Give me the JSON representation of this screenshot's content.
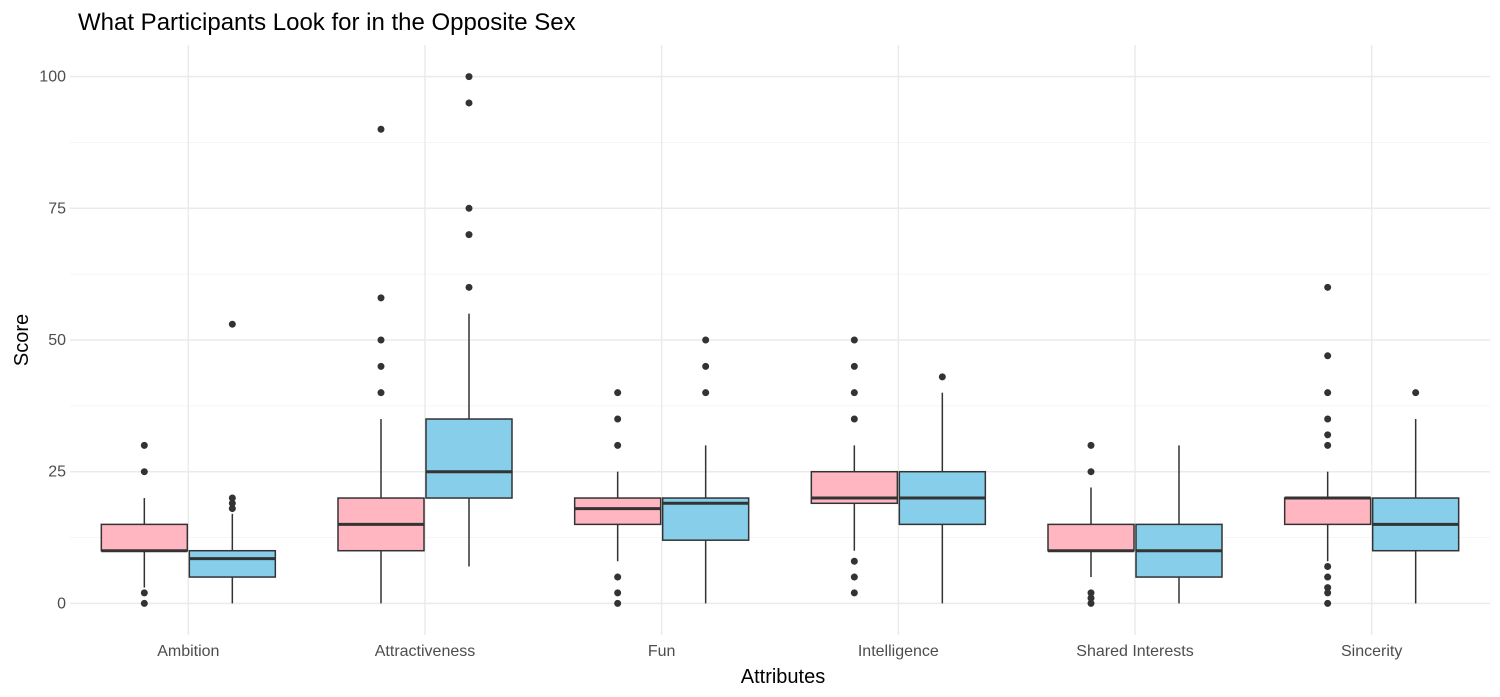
{
  "chart_data": {
    "type": "boxplot",
    "title": "What Participants Look for in the Opposite Sex",
    "xlabel": "Attributes",
    "ylabel": "Score",
    "ylim": [
      -6,
      106
    ],
    "yticks": [
      0,
      25,
      50,
      75,
      100
    ],
    "grid": true,
    "legend": "none",
    "categories": [
      "Ambition",
      "Attractiveness",
      "Fun",
      "Intelligence",
      "Shared Interests",
      "Sincerity"
    ],
    "series": [
      {
        "color": "#FFB6C1",
        "boxes": [
          {
            "category": "Ambition",
            "q1": 10,
            "median": 10,
            "q3": 15,
            "whisker_low": 3,
            "whisker_high": 20,
            "outliers": [
              0,
              2,
              25,
              30
            ]
          },
          {
            "category": "Attractiveness",
            "q1": 10,
            "median": 15,
            "q3": 20,
            "whisker_low": 0,
            "whisker_high": 35,
            "outliers": [
              40,
              45,
              50,
              58,
              90
            ]
          },
          {
            "category": "Fun",
            "q1": 15,
            "median": 18,
            "q3": 20,
            "whisker_low": 8,
            "whisker_high": 25,
            "outliers": [
              0,
              2,
              5,
              30,
              35,
              40
            ]
          },
          {
            "category": "Intelligence",
            "q1": 19,
            "median": 20,
            "q3": 25,
            "whisker_low": 10,
            "whisker_high": 30,
            "outliers": [
              2,
              5,
              8,
              35,
              40,
              45,
              50
            ]
          },
          {
            "category": "Shared Interests",
            "q1": 10,
            "median": 10,
            "q3": 15,
            "whisker_low": 5,
            "whisker_high": 22,
            "outliers": [
              0,
              1,
              2,
              25,
              30
            ]
          },
          {
            "category": "Sincerity",
            "q1": 15,
            "median": 20,
            "q3": 20,
            "whisker_low": 8,
            "whisker_high": 25,
            "outliers": [
              0,
              2,
              3,
              5,
              7,
              30,
              32,
              35,
              40,
              47,
              60
            ]
          }
        ]
      },
      {
        "color": "#87CEEB",
        "boxes": [
          {
            "category": "Ambition",
            "q1": 5,
            "median": 8.5,
            "q3": 10,
            "whisker_low": 0,
            "whisker_high": 17,
            "outliers": [
              18,
              19,
              20,
              53
            ]
          },
          {
            "category": "Attractiveness",
            "q1": 20,
            "median": 25,
            "q3": 35,
            "whisker_low": 7,
            "whisker_high": 55,
            "outliers": [
              60,
              70,
              75,
              95,
              100
            ]
          },
          {
            "category": "Fun",
            "q1": 12,
            "median": 19,
            "q3": 20,
            "whisker_low": 0,
            "whisker_high": 30,
            "outliers": [
              40,
              45,
              50
            ]
          },
          {
            "category": "Intelligence",
            "q1": 15,
            "median": 20,
            "q3": 25,
            "whisker_low": 0,
            "whisker_high": 40,
            "outliers": [
              43
            ]
          },
          {
            "category": "Shared Interests",
            "q1": 5,
            "median": 10,
            "q3": 15,
            "whisker_low": 0,
            "whisker_high": 30,
            "outliers": []
          },
          {
            "category": "Sincerity",
            "q1": 10,
            "median": 15,
            "q3": 20,
            "whisker_low": 0,
            "whisker_high": 35,
            "outliers": [
              40
            ]
          }
        ]
      }
    ],
    "colors": {
      "box_outline": "#333333",
      "grid_major": "#EBEBEB",
      "grid_minor": "#F5F5F5",
      "tick_text": "#4D4D4D"
    }
  }
}
